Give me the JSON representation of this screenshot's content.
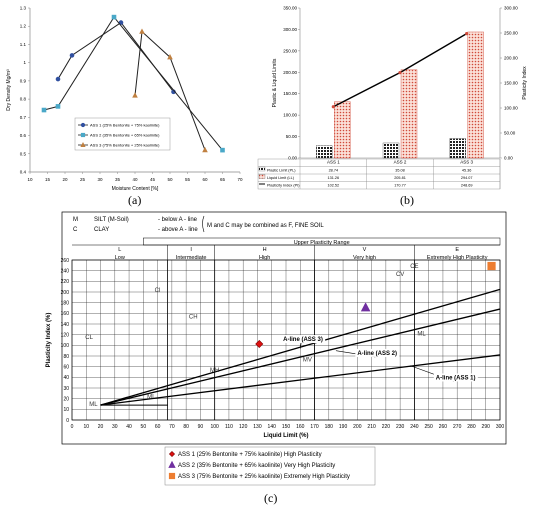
{
  "chart_data": [
    {
      "panel": "(a)",
      "type": "line",
      "xlabel": "Moisture Content [%]",
      "ylabel": "Dry Density Mg/m³",
      "xlim": [
        10,
        70
      ],
      "ylim": [
        0.4,
        1.3
      ],
      "x_ticks": [
        "10",
        "15",
        "20",
        "25",
        "30",
        "35",
        "40",
        "45",
        "50",
        "55",
        "60",
        "65",
        "70"
      ],
      "y_ticks": [
        "0.4",
        "0.5",
        "0.6",
        "0.7",
        "0.8",
        "0.9",
        "1",
        "1.1",
        "1.2",
        "1.3"
      ],
      "legend_position": "bottom-right",
      "series": [
        {
          "name": "ASS 1 (25% Bentonite + 75% kaolinite)",
          "color": "#3050a0",
          "marker": "circle",
          "x": [
            18,
            22,
            36,
            51
          ],
          "y": [
            0.91,
            1.04,
            1.22,
            0.84
          ]
        },
        {
          "name": "ASS 2 (35% Bentonite + 65% kaolinite)",
          "color": "#4aa8c8",
          "marker": "square",
          "x": [
            14,
            18,
            34,
            65
          ],
          "y": [
            0.74,
            0.76,
            1.25,
            0.52
          ]
        },
        {
          "name": "ASS 3 (75% Bentonite + 25% kaolinite)",
          "color": "#c08040",
          "marker": "triangle",
          "x": [
            40,
            42,
            50,
            60
          ],
          "y": [
            0.82,
            1.17,
            1.03,
            0.52
          ]
        }
      ]
    },
    {
      "panel": "(b)",
      "type": "bar",
      "ylabel": "Plastic & Liquid Limits",
      "y2label": "Plasticity Index",
      "categories": [
        "ASS 1",
        "ASS 2",
        "ASS 3"
      ],
      "ylim": [
        0,
        350
      ],
      "y2lim": [
        0,
        300
      ],
      "y_ticks": [
        "0.00",
        "50.00",
        "100.00",
        "150.00",
        "200.00",
        "250.00",
        "300.00",
        "350.00"
      ],
      "y2_ticks": [
        "0.00",
        "50.00",
        "100.00",
        "150.00",
        "200.00",
        "250.00",
        "300.00"
      ],
      "series": [
        {
          "name": "Plastic Limit (PL)",
          "values": [
            28.74,
            35.08,
            45.36
          ],
          "values_text": [
            "28.74",
            "35.08",
            "45.36"
          ]
        },
        {
          "name": "Liquid Limit (LL)",
          "values": [
            131.26,
            205.81,
            294.07
          ],
          "values_text": [
            "131.26",
            "205.81",
            "294.07"
          ]
        },
        {
          "name": "Plasticity Index (PI)",
          "values": [
            102.52,
            170.77,
            248.69
          ],
          "values_text": [
            "102.52",
            "170.77",
            "248.69"
          ]
        }
      ]
    },
    {
      "panel": "(c)",
      "type": "scatter",
      "xlabel": "Liquid Limit (%)",
      "ylabel": "Plasticity Index (%)",
      "xlim": [
        0,
        300
      ],
      "ylim": [
        0,
        260
      ],
      "x_ticks": [
        "0",
        "10",
        "20",
        "30",
        "40",
        "50",
        "60",
        "70",
        "80",
        "90",
        "100",
        "110",
        "120",
        "130",
        "140",
        "150",
        "160",
        "170",
        "180",
        "190",
        "200",
        "210",
        "220",
        "230",
        "240",
        "250",
        "260",
        "270",
        "280",
        "290",
        "300"
      ],
      "y_ticks": [
        "0",
        "10",
        "20",
        "30",
        "40",
        "60",
        "80",
        "100",
        "120",
        "140",
        "160",
        "180",
        "200",
        "220",
        "240",
        "260"
      ],
      "y_tick_values": [
        0,
        10,
        20,
        30,
        40,
        60,
        80,
        100,
        120,
        140,
        160,
        180,
        200,
        220,
        240,
        260
      ],
      "header": {
        "m": "M",
        "silt": "SILT (M-Soil)",
        "below": "- below A - line",
        "c": "C",
        "clay": "CLAY",
        "above": "- above A - line",
        "note": "M and C may be combined as F, FINE SOIL",
        "upper_range": "Upper Plasticity Range",
        "categories": [
          {
            "code": "L",
            "name": "Low"
          },
          {
            "code": "I",
            "name": "Intermediate"
          },
          {
            "code": "H",
            "name": "High"
          },
          {
            "code": "V",
            "name": "Very high"
          },
          {
            "code": "E",
            "name": "Extremely High Plasticity"
          }
        ]
      },
      "zones": [
        "CV",
        "CH",
        "CI",
        "CL",
        "CE",
        "ML",
        "MV",
        "MH",
        "MI",
        "ML"
      ],
      "lines": [
        {
          "name": "A-line (ASS 3)",
          "x": [
            20,
            300
          ],
          "y": [
            14,
            205
          ]
        },
        {
          "name": "A-line (ASS 2)",
          "x": [
            20,
            300
          ],
          "y": [
            14,
            168
          ]
        },
        {
          "name": "A-line (ASS 1)",
          "x": [
            20,
            300
          ],
          "y": [
            14,
            82
          ]
        }
      ],
      "points": [
        {
          "name": "ASS 1 (25% Bentonite + 75% kaolinite) High Plasticity",
          "x": 131.26,
          "y": 102.52,
          "color": "#dd1111",
          "marker": "diamond"
        },
        {
          "name": "ASS 2 (35% Bentonite + 65% kaolinite) Very High Plasticity",
          "x": 205.81,
          "y": 170.77,
          "color": "#7030a0",
          "marker": "triangle"
        },
        {
          "name": "ASS 3 (75% Bentonite + 25% kaolinite) Extremely High Plasticity",
          "x": 294.07,
          "y": 248.69,
          "color": "#ed7d31",
          "marker": "square"
        }
      ]
    }
  ]
}
